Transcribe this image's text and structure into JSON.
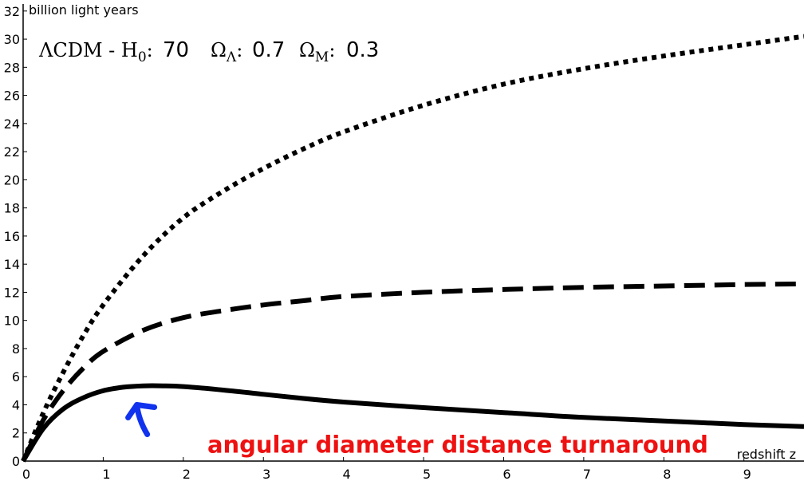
{
  "chart_data": {
    "type": "line",
    "title": "",
    "xlabel": "redshift z",
    "ylabel": "billion light years",
    "xlim": [
      0,
      9.75
    ],
    "ylim": [
      0,
      32.5
    ],
    "x_ticks": [
      "0",
      "1",
      "2",
      "3",
      "4",
      "5",
      "6",
      "7",
      "8",
      "9"
    ],
    "y_ticks": [
      "0",
      "2",
      "4",
      "6",
      "8",
      "10",
      "12",
      "14",
      "16",
      "18",
      "20",
      "22",
      "24",
      "26",
      "28",
      "30",
      "32"
    ],
    "grid": false,
    "cosmology_params": {
      "model": "ΛCDM - H",
      "h0_sub": "0",
      "h0_sep": ":",
      "h0_value": "70",
      "omega_lambda_symbol": "Ω",
      "omega_lambda_sub": "Λ",
      "omega_lambda_sep": ":",
      "omega_lambda_value": "0.7",
      "omega_m_symbol": "Ω",
      "omega_m_sub": "M",
      "omega_m_sep": ":",
      "omega_m_value": "0.3"
    },
    "series": [
      {
        "style": "dotted",
        "color": "#000000",
        "x": [
          0,
          0.25,
          0.5,
          0.75,
          1,
          1.5,
          2,
          2.5,
          3,
          3.5,
          4,
          5,
          6,
          7,
          8,
          9,
          9.75
        ],
        "y": [
          0,
          3.4,
          6.3,
          8.9,
          11.1,
          14.6,
          17.3,
          19.2,
          20.8,
          22.2,
          23.4,
          25.3,
          26.8,
          27.9,
          28.8,
          29.6,
          30.2
        ]
      },
      {
        "style": "dashed",
        "color": "#000000",
        "x": [
          0,
          0.25,
          0.5,
          0.75,
          1,
          1.5,
          2,
          2.5,
          3,
          3.5,
          4,
          5,
          6,
          7,
          8,
          9,
          9.75
        ],
        "y": [
          0,
          2.9,
          5.0,
          6.6,
          7.8,
          9.3,
          10.2,
          10.7,
          11.1,
          11.4,
          11.7,
          12.0,
          12.2,
          12.35,
          12.45,
          12.55,
          12.6
        ]
      },
      {
        "style": "solid",
        "color": "#000000",
        "x": [
          0,
          0.25,
          0.5,
          0.75,
          1,
          1.25,
          1.5,
          1.75,
          2,
          2.5,
          3,
          3.5,
          4,
          5,
          6,
          7,
          8,
          9,
          9.75
        ],
        "y": [
          0,
          2.3,
          3.7,
          4.5,
          5.0,
          5.25,
          5.35,
          5.35,
          5.3,
          5.05,
          4.75,
          4.45,
          4.2,
          3.8,
          3.45,
          3.1,
          2.85,
          2.6,
          2.45
        ]
      }
    ],
    "annotation": {
      "text": "angular diameter distance turnaround",
      "color": "#ee1111",
      "x": 2.3,
      "y": 0.6
    },
    "arrow": {
      "color": "#1133ee",
      "tail": [
        1.55,
        1.9
      ],
      "head": [
        1.42,
        4.0
      ]
    }
  }
}
